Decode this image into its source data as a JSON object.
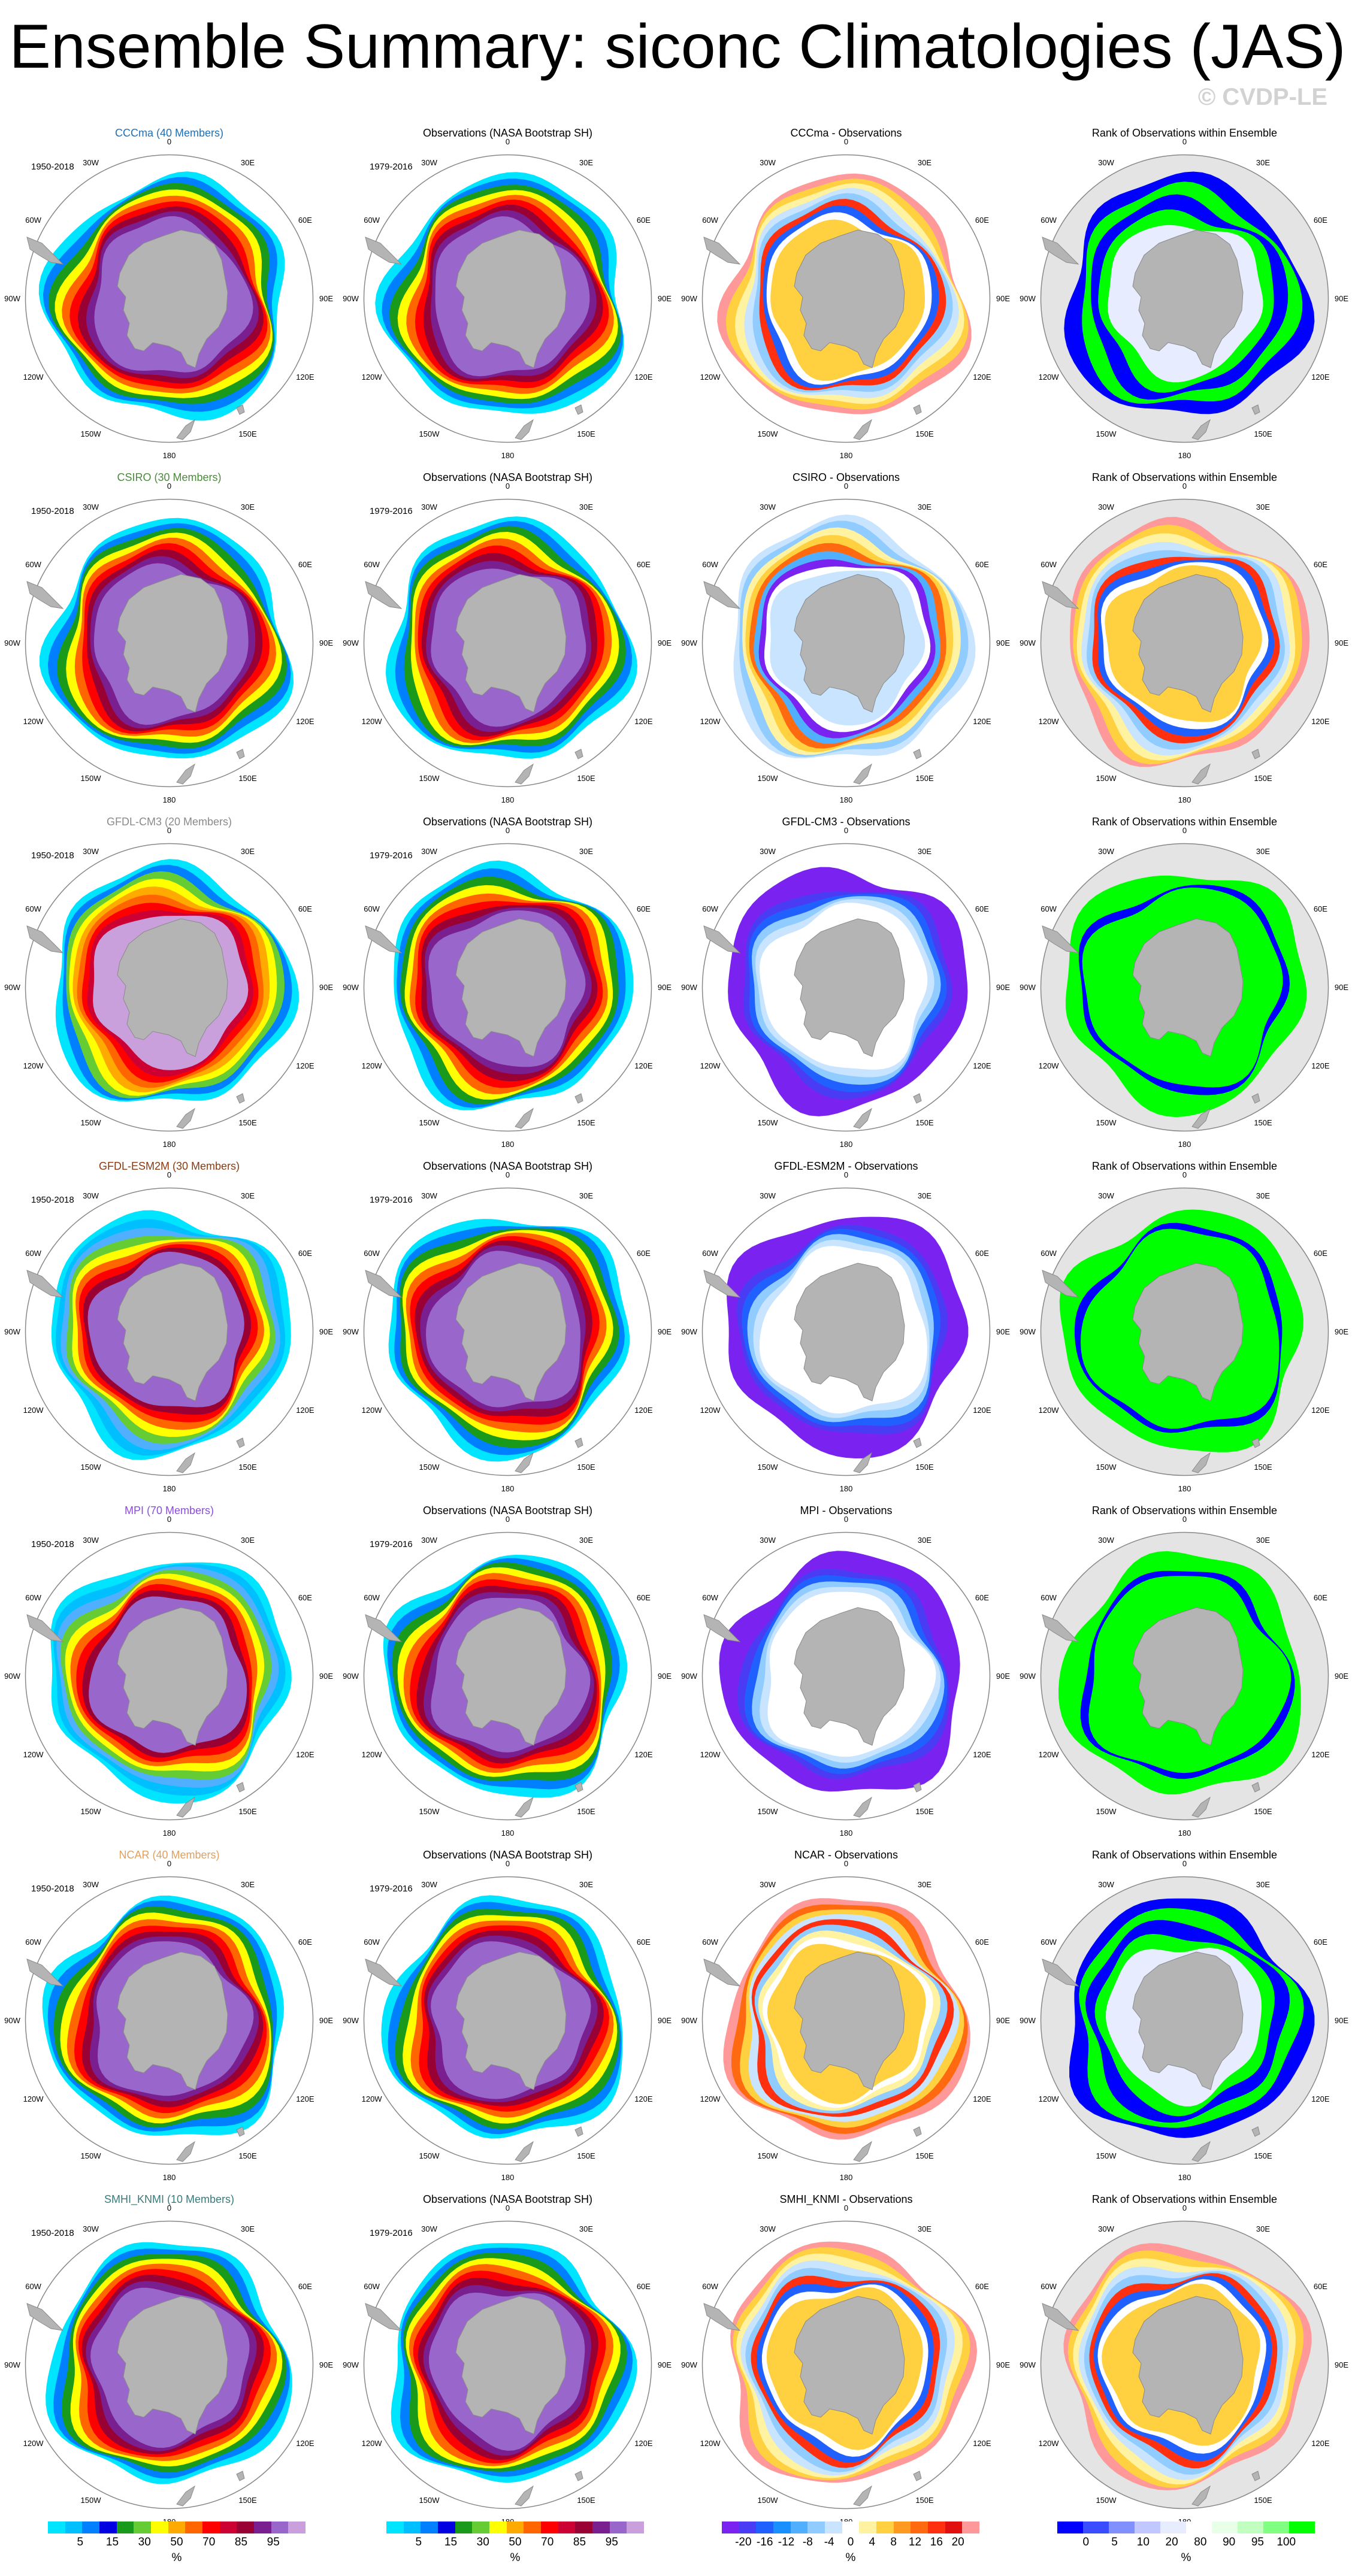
{
  "header": {
    "title": "Ensemble Summary: siconc Climatologies (JAS)",
    "watermark": "© CVDP-LE"
  },
  "rank_title": "Rank of Observations within Ensemble",
  "obs_title": "Observations (NASA Bootstrap SH)",
  "obs_period": "1979-2016",
  "model_period": "1950-2018",
  "lon_labels": [
    "0",
    "30E",
    "60E",
    "90E",
    "120E",
    "150E",
    "180",
    "150W",
    "120W",
    "90W",
    "60W",
    "30W"
  ],
  "rows": [
    {
      "model_title": "CCCma (40 Members)",
      "diff_title": "CCCma - Observations",
      "title_color": "#1f6fb5",
      "model_style": "dense",
      "diff_style": "mixed",
      "rank_style": "blue"
    },
    {
      "model_title": "CSIRO (30 Members)",
      "diff_title": "CSIRO - Observations",
      "title_color": "#4a8a3a",
      "model_style": "dense",
      "diff_style": "light",
      "rank_style": "mixed"
    },
    {
      "model_title": "GFDL-CM3 (20 Members)",
      "diff_title": "GFDL-CM3 - Observations",
      "title_color": "#8a8a8a",
      "model_style": "warm",
      "diff_style": "purple",
      "rank_style": "green"
    },
    {
      "model_title": "GFDL-ESM2M (30 Members)",
      "diff_title": "GFDL-ESM2M - Observations",
      "title_color": "#8b3a0f",
      "model_style": "cool",
      "diff_style": "purple",
      "rank_style": "green"
    },
    {
      "model_title": "MPI (70 Members)",
      "diff_title": "MPI - Observations",
      "title_color": "#8a4fd8",
      "model_style": "cool",
      "diff_style": "purple",
      "rank_style": "green"
    },
    {
      "model_title": "NCAR (40 Members)",
      "diff_title": "NCAR - Observations",
      "title_color": "#e0a060",
      "model_style": "dense",
      "diff_style": "warmdiff",
      "rank_style": "blue"
    },
    {
      "model_title": "SMHI_KNMI (10 Members)",
      "diff_title": "SMHI_KNMI - Observations",
      "title_color": "#3a7a7a",
      "model_style": "dense",
      "diff_style": "mixed",
      "rank_style": "mixed"
    }
  ],
  "colorbars": {
    "clim": {
      "colors": [
        "#00e5ff",
        "#00bfff",
        "#0080ff",
        "#0000e0",
        "#1a9a1a",
        "#66cc33",
        "#ffff00",
        "#ffaa00",
        "#ff6600",
        "#ff0000",
        "#cc0033",
        "#990033",
        "#7a1f8f",
        "#9966cc",
        "#c9a0dc"
      ],
      "ticks": [
        "5",
        "15",
        "30",
        "50",
        "70",
        "85",
        "95"
      ],
      "unit": "%"
    },
    "diff": {
      "colors": [
        "#7a22f0",
        "#4a3cf5",
        "#2060ff",
        "#1a90ff",
        "#50b0ff",
        "#90ccff",
        "#c8e4ff",
        "#ffffff",
        "#fff2a0",
        "#ffd040",
        "#ff9a20",
        "#ff6a10",
        "#ff3010",
        "#e01010",
        "#ff9999"
      ],
      "ticks": [
        "-20",
        "-16",
        "-12",
        "-8",
        "-4",
        "0",
        "4",
        "8",
        "12",
        "16",
        "20"
      ],
      "unit": "%"
    },
    "rank": {
      "colors": [
        "#0000ff",
        "#3a4cff",
        "#8090ff",
        "#c0c8ff",
        "#e8ecff",
        "#ffffff",
        "#e8ffe8",
        "#c0ffc0",
        "#80ff80",
        "#00ff00"
      ],
      "ticks": [
        "0",
        "5",
        "10",
        "20",
        "80",
        "90",
        "95",
        "100"
      ],
      "unit": "%"
    }
  }
}
